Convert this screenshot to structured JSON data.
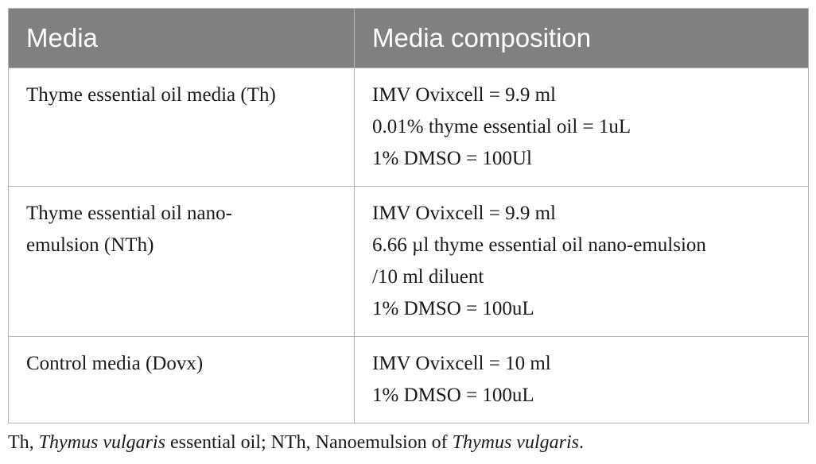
{
  "table": {
    "headers": [
      "Media",
      "Media composition"
    ],
    "rows": [
      {
        "media": "Thyme essential oil media (Th)",
        "composition": [
          "IMV Ovixcell = 9.9 ml",
          "0.01% thyme essential oil = 1uL",
          "1% DMSO = 100Ul"
        ]
      },
      {
        "media": "Thyme essential oil nano-emulsion (NTh)",
        "media_lines": [
          "Thyme essential oil nano-",
          "emulsion (NTh)"
        ],
        "composition": [
          "IMV Ovixcell = 9.9 ml",
          "6.66 µl thyme essential oil nano-emulsion",
          "/10 ml diluent",
          "1% DMSO = 100uL"
        ]
      },
      {
        "media": "Control media (Dovx)",
        "composition": [
          "IMV Ovixcell = 10 ml",
          "1% DMSO = 100uL"
        ]
      }
    ]
  },
  "caption": {
    "part1": "Th, ",
    "part2_italic": "Thymus vulgaris",
    "part3": " essential oil; NTh, Nanoemulsion of ",
    "part4_italic": "Thymus vulgaris",
    "part5": "."
  },
  "colors": {
    "header_bg": "#808080",
    "header_text": "#ffffff",
    "border": "#b5b5b5"
  }
}
